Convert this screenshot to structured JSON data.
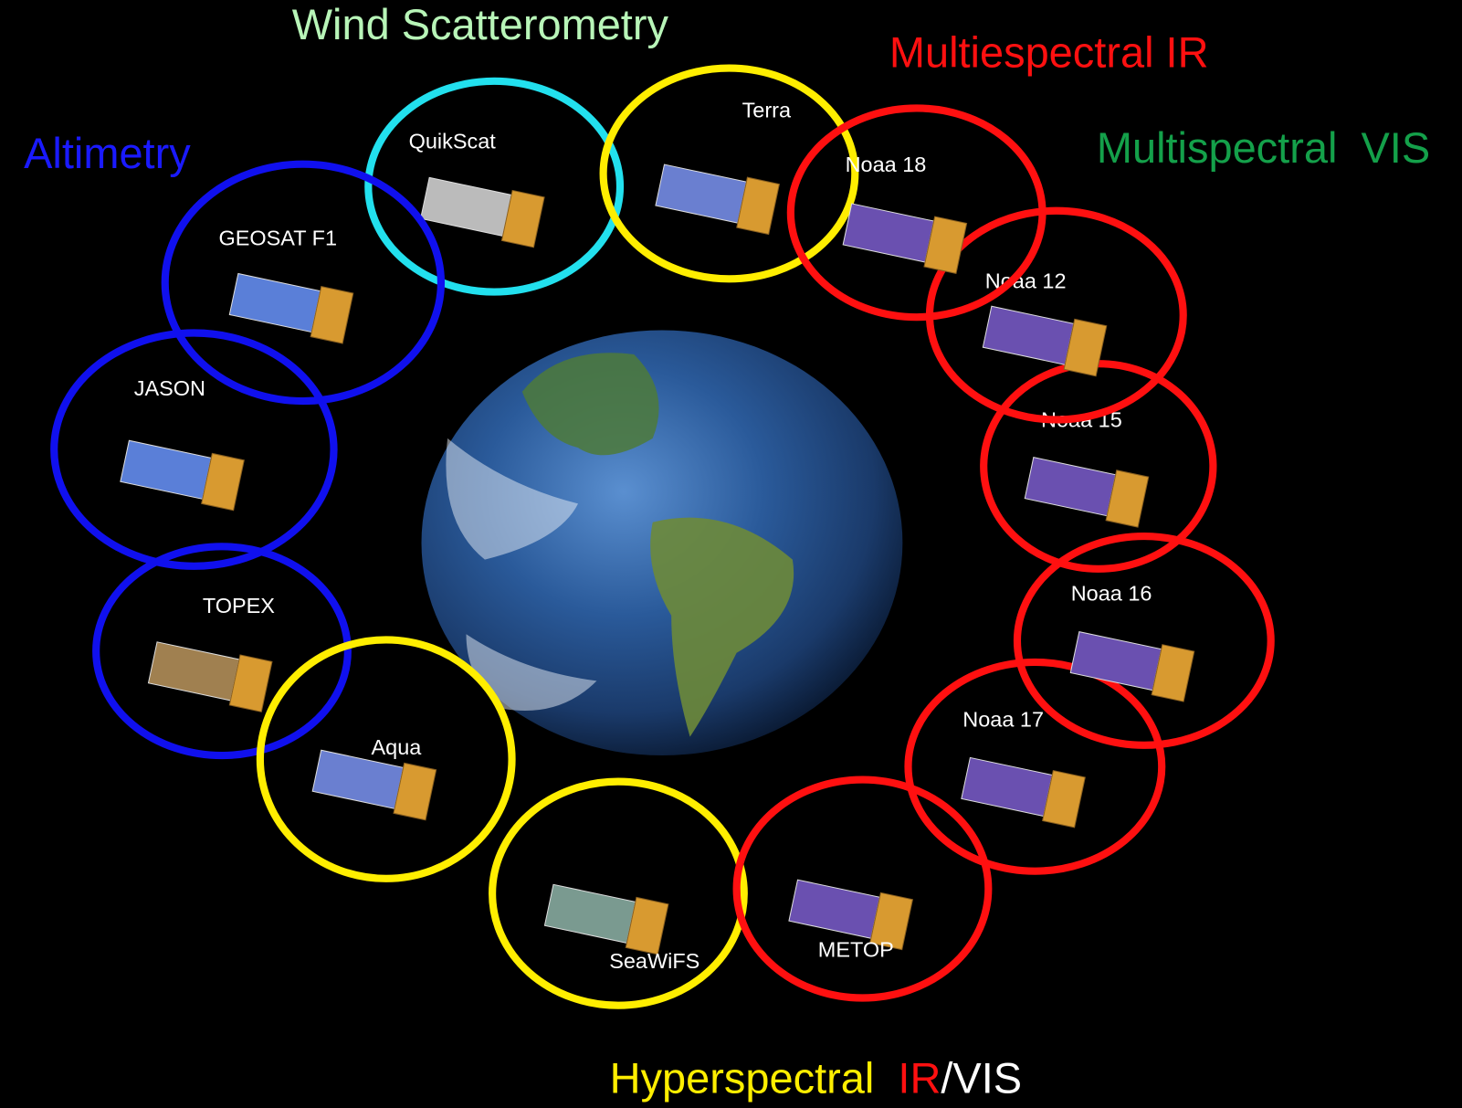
{
  "headings": {
    "wind": "Wind Scatterometry",
    "ir": "Multiespectral IR",
    "altimetry": "Altimetry",
    "vis": "Multispectral  VIS",
    "hyper": [
      "Hyperspectral  ",
      "IR",
      "/VIS"
    ]
  },
  "satellites": [
    {
      "label": "QuikScat"
    },
    {
      "label": "Terra"
    },
    {
      "label": "GEOSAT F1"
    },
    {
      "label": "JASON"
    },
    {
      "label": "TOPEX"
    },
    {
      "label": "Aqua"
    },
    {
      "label": "SeaWiFS"
    },
    {
      "label": "METOP"
    },
    {
      "label": "Noaa 17"
    },
    {
      "label": "Noaa 16"
    },
    {
      "label": "Noaa 15"
    },
    {
      "label": "Noaa 12"
    },
    {
      "label": "Noaa 18"
    }
  ]
}
